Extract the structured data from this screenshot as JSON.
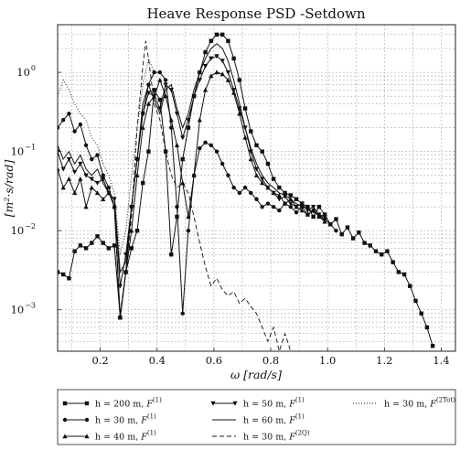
{
  "chart_data": {
    "type": "line",
    "title": "Heave Response PSD -Setdown",
    "xlabel": "ω [rad/s]",
    "ylabel": "[m²·s/rad]",
    "x_range": [
      0.05,
      1.45
    ],
    "y_range": [
      0.0003,
      4
    ],
    "y_scale": "log",
    "grid": true,
    "legend_position": "below",
    "x_ticks": [
      {
        "value": 0.2,
        "label": "0.2"
      },
      {
        "value": 0.4,
        "label": "0.4"
      },
      {
        "value": 0.6,
        "label": "0.6"
      },
      {
        "value": 0.8,
        "label": "0.8"
      },
      {
        "value": 1.0,
        "label": "1.0"
      },
      {
        "value": 1.2,
        "label": "1.2"
      },
      {
        "value": 1.4,
        "label": "1.4"
      }
    ],
    "y_ticks": [
      {
        "value": 0.001,
        "base": "10",
        "exp": "−3"
      },
      {
        "value": 0.01,
        "base": "10",
        "exp": "−2"
      },
      {
        "value": 0.1,
        "base": "10",
        "exp": "−1"
      },
      {
        "value": 1,
        "base": "10",
        "exp": "0"
      }
    ],
    "series": [
      {
        "name": "h = 200 m, F(1)",
        "label_main": "h = 200 m, ",
        "label_sup": "(1)",
        "line": "solid",
        "marker": "square",
        "x": [
          0.05,
          0.07,
          0.09,
          0.11,
          0.13,
          0.15,
          0.17,
          0.19,
          0.21,
          0.23,
          0.25,
          0.27,
          0.29,
          0.31,
          0.33,
          0.35,
          0.37,
          0.39,
          0.41,
          0.43,
          0.45,
          0.47,
          0.49,
          0.51,
          0.53,
          0.55,
          0.57,
          0.59,
          0.61,
          0.63,
          0.65,
          0.67,
          0.69,
          0.71,
          0.73,
          0.75,
          0.77,
          0.79,
          0.81,
          0.83,
          0.85,
          0.87,
          0.89,
          0.91,
          0.93,
          0.95,
          0.97,
          0.99,
          1.01,
          1.03,
          1.05,
          1.07,
          1.09,
          1.11,
          1.13,
          1.15,
          1.17,
          1.19,
          1.21,
          1.23,
          1.25,
          1.27,
          1.29,
          1.31,
          1.33,
          1.35,
          1.37
        ],
        "y": [
          0.003,
          0.0028,
          0.0025,
          0.0055,
          0.0065,
          0.006,
          0.007,
          0.0085,
          0.007,
          0.006,
          0.0065,
          0.0008,
          0.003,
          0.006,
          0.01,
          0.04,
          0.1,
          0.6,
          0.45,
          0.1,
          0.005,
          0.015,
          0.08,
          0.2,
          0.5,
          1.0,
          1.8,
          2.5,
          3.0,
          3.0,
          2.5,
          1.5,
          0.8,
          0.35,
          0.18,
          0.12,
          0.1,
          0.07,
          0.045,
          0.035,
          0.03,
          0.028,
          0.025,
          0.022,
          0.02,
          0.015,
          0.02,
          0.016,
          0.012,
          0.014,
          0.009,
          0.011,
          0.008,
          0.0095,
          0.007,
          0.0065,
          0.0055,
          0.005,
          0.0055,
          0.004,
          0.003,
          0.0028,
          0.002,
          0.0013,
          0.0009,
          0.0006,
          0.00035
        ]
      },
      {
        "name": "h = 30 m, F(1)",
        "label_main": "h = 30 m, ",
        "label_sup": "(1)",
        "line": "solid",
        "marker": "circle",
        "x": [
          0.05,
          0.07,
          0.09,
          0.11,
          0.13,
          0.15,
          0.17,
          0.19,
          0.21,
          0.23,
          0.25,
          0.27,
          0.29,
          0.31,
          0.33,
          0.35,
          0.37,
          0.39,
          0.41,
          0.43,
          0.45,
          0.47,
          0.49,
          0.51,
          0.53,
          0.55,
          0.57,
          0.59,
          0.61,
          0.63,
          0.65,
          0.67,
          0.69,
          0.71,
          0.73,
          0.75,
          0.77,
          0.79,
          0.81,
          0.83,
          0.85,
          0.87,
          0.89,
          0.91,
          0.93,
          0.95,
          0.97,
          0.99,
          1.01,
          1.03
        ],
        "y": [
          0.2,
          0.25,
          0.3,
          0.18,
          0.22,
          0.12,
          0.08,
          0.09,
          0.05,
          0.035,
          0.02,
          0.0008,
          0.003,
          0.02,
          0.08,
          0.3,
          0.7,
          1.0,
          1.0,
          0.8,
          0.2,
          0.02,
          0.0009,
          0.01,
          0.05,
          0.11,
          0.13,
          0.12,
          0.1,
          0.07,
          0.05,
          0.035,
          0.03,
          0.035,
          0.03,
          0.025,
          0.02,
          0.022,
          0.02,
          0.018,
          0.022,
          0.02,
          0.017,
          0.02,
          0.016,
          0.018,
          0.015,
          0.014,
          0.012,
          0.01
        ]
      },
      {
        "name": "h = 40 m, F(1)",
        "label_main": "h = 40 m, ",
        "label_sup": "(1)",
        "line": "solid",
        "marker": "triangle-up",
        "x": [
          0.05,
          0.07,
          0.09,
          0.11,
          0.13,
          0.15,
          0.17,
          0.19,
          0.21,
          0.23,
          0.25,
          0.27,
          0.29,
          0.31,
          0.33,
          0.35,
          0.37,
          0.39,
          0.41,
          0.43,
          0.45,
          0.47,
          0.49,
          0.51,
          0.53,
          0.55,
          0.57,
          0.59,
          0.61,
          0.63,
          0.65,
          0.67,
          0.69,
          0.71,
          0.73,
          0.75,
          0.77,
          0.79,
          0.81,
          0.83,
          0.85,
          0.87,
          0.89,
          0.91,
          0.93,
          0.95,
          0.97,
          0.99
        ],
        "y": [
          0.06,
          0.035,
          0.045,
          0.03,
          0.045,
          0.02,
          0.035,
          0.03,
          0.025,
          0.03,
          0.02,
          0.0008,
          0.003,
          0.01,
          0.05,
          0.2,
          0.4,
          0.5,
          0.8,
          0.5,
          0.25,
          0.12,
          0.04,
          0.015,
          0.05,
          0.25,
          0.6,
          0.9,
          1.0,
          0.95,
          0.8,
          0.55,
          0.3,
          0.15,
          0.08,
          0.05,
          0.04,
          0.035,
          0.03,
          0.028,
          0.022,
          0.025,
          0.02,
          0.018,
          0.016,
          0.018,
          0.015,
          0.013
        ]
      },
      {
        "name": "h = 50 m, F(1)",
        "label_main": "h = 50 m, ",
        "label_sup": "(1)",
        "line": "solid",
        "marker": "triangle-down",
        "x": [
          0.05,
          0.07,
          0.09,
          0.11,
          0.13,
          0.15,
          0.17,
          0.19,
          0.21,
          0.23,
          0.25,
          0.27,
          0.29,
          0.31,
          0.33,
          0.35,
          0.37,
          0.39,
          0.41,
          0.43,
          0.45,
          0.47,
          0.49,
          0.51,
          0.53,
          0.55,
          0.57,
          0.59,
          0.61,
          0.63,
          0.65,
          0.67,
          0.69,
          0.71,
          0.73,
          0.75,
          0.77,
          0.79,
          0.81,
          0.83,
          0.85,
          0.87,
          0.89,
          0.91,
          0.93,
          0.95,
          0.97,
          0.99
        ],
        "y": [
          0.1,
          0.06,
          0.08,
          0.055,
          0.07,
          0.05,
          0.045,
          0.04,
          0.045,
          0.03,
          0.025,
          0.002,
          0.005,
          0.02,
          0.08,
          0.3,
          0.55,
          0.5,
          0.35,
          0.7,
          0.6,
          0.3,
          0.15,
          0.25,
          0.5,
          0.8,
          1.2,
          1.5,
          1.6,
          1.4,
          1.0,
          0.6,
          0.35,
          0.2,
          0.1,
          0.06,
          0.045,
          0.035,
          0.03,
          0.025,
          0.027,
          0.022,
          0.02,
          0.022,
          0.018,
          0.02,
          0.016,
          0.015
        ]
      },
      {
        "name": "h = 60 m, F(1)",
        "label_main": "h = 60 m, ",
        "label_sup": "(1)",
        "line": "solid",
        "marker": "none",
        "x": [
          0.05,
          0.07,
          0.09,
          0.11,
          0.13,
          0.15,
          0.17,
          0.19,
          0.21,
          0.23,
          0.25,
          0.27,
          0.29,
          0.31,
          0.33,
          0.35,
          0.37,
          0.39,
          0.41,
          0.43,
          0.45,
          0.47,
          0.49,
          0.51,
          0.53,
          0.55,
          0.57,
          0.59,
          0.61,
          0.63,
          0.65,
          0.67,
          0.69,
          0.71,
          0.73,
          0.75,
          0.77,
          0.79,
          0.81,
          0.83,
          0.85,
          0.87,
          0.89,
          0.91,
          0.93,
          0.95,
          0.97,
          0.99
        ],
        "y": [
          0.12,
          0.08,
          0.1,
          0.07,
          0.09,
          0.06,
          0.05,
          0.06,
          0.04,
          0.03,
          0.025,
          0.003,
          0.004,
          0.02,
          0.08,
          0.4,
          0.7,
          0.45,
          0.3,
          0.6,
          0.7,
          0.35,
          0.2,
          0.3,
          0.6,
          1.0,
          1.5,
          2.0,
          2.3,
          2.0,
          1.4,
          0.8,
          0.4,
          0.2,
          0.11,
          0.07,
          0.05,
          0.04,
          0.035,
          0.03,
          0.028,
          0.025,
          0.022,
          0.02,
          0.019,
          0.017,
          0.016,
          0.014
        ]
      },
      {
        "name": "h = 30 m, F(2Q)",
        "label_main": "h = 30 m, ",
        "label_sup": "(2Q)",
        "line": "dashed",
        "marker": "none",
        "x": [
          0.25,
          0.27,
          0.29,
          0.31,
          0.33,
          0.35,
          0.36,
          0.37,
          0.39,
          0.41,
          0.43,
          0.45,
          0.47,
          0.49,
          0.51,
          0.53,
          0.55,
          0.57,
          0.59,
          0.61,
          0.63,
          0.65,
          0.67,
          0.69,
          0.71,
          0.73,
          0.75,
          0.77,
          0.79,
          0.81,
          0.83,
          0.85,
          0.87
        ],
        "y": [
          0.006,
          0.0009,
          0.003,
          0.015,
          0.2,
          1.2,
          2.5,
          1.5,
          0.4,
          0.25,
          0.1,
          0.05,
          0.035,
          0.04,
          0.03,
          0.015,
          0.007,
          0.0035,
          0.002,
          0.0025,
          0.0018,
          0.0015,
          0.0017,
          0.0012,
          0.0014,
          0.0011,
          0.0009,
          0.0006,
          0.0004,
          0.0006,
          0.0003,
          0.0005,
          0.0003
        ]
      },
      {
        "name": "h = 30 m, F(2Tot)",
        "label_main": "h = 30 m, ",
        "label_sup": "(2Tot)",
        "line": "dotted",
        "marker": "none",
        "x": [
          0.05,
          0.07,
          0.09,
          0.11,
          0.13,
          0.15,
          0.17,
          0.19,
          0.21,
          0.23,
          0.25,
          0.27,
          0.29,
          0.31,
          0.33,
          0.35,
          0.37,
          0.39
        ],
        "y": [
          0.5,
          0.8,
          0.6,
          0.4,
          0.3,
          0.25,
          0.15,
          0.12,
          0.07,
          0.05,
          0.03,
          0.005,
          0.01,
          0.05,
          0.2,
          0.7,
          1.5,
          1.0
        ]
      }
    ]
  }
}
